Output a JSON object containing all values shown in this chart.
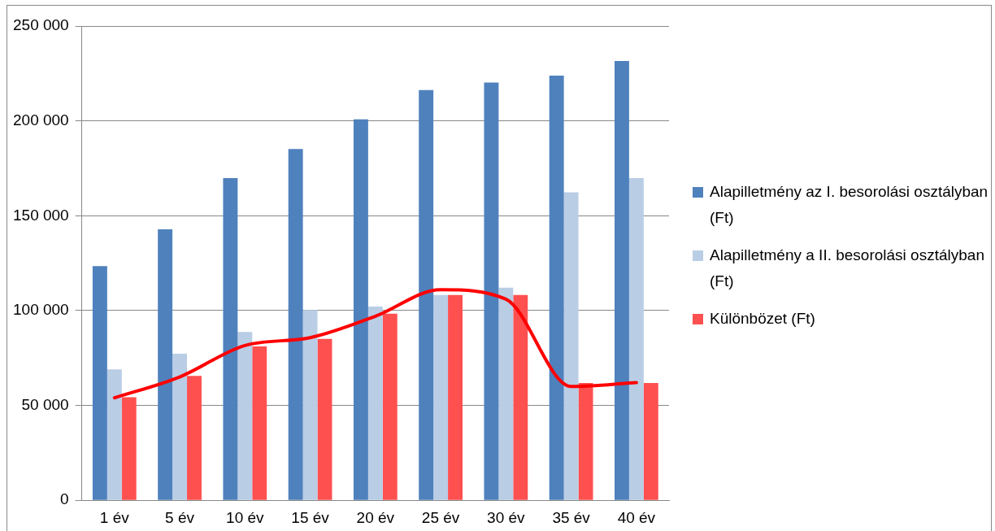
{
  "chart_data": {
    "type": "bar",
    "categories": [
      "1 év",
      "5 év",
      "10 év",
      "15 év",
      "20 év",
      "25 év",
      "30 év",
      "35 év",
      "40 év"
    ],
    "series": [
      {
        "name": "Alapilletmény az I. besorolási osztályban (Ft)",
        "color": "#4f81bd",
        "values": [
          123400,
          142800,
          169800,
          185200,
          200800,
          216200,
          220200,
          223900,
          231600
        ]
      },
      {
        "name": "Alapilletmény a II. besorolási osztályban (Ft)",
        "color": "#b9cde5",
        "values": [
          69000,
          77200,
          88700,
          100300,
          102100,
          108200,
          112100,
          162300,
          169800
        ]
      },
      {
        "name": "Különbözet (Ft)",
        "color": "#ff5050",
        "values": [
          54300,
          65600,
          81100,
          85100,
          98400,
          108200,
          108200,
          61800,
          61800
        ]
      },
      {
        "type": "line",
        "color": "#ff0000",
        "values": [
          54000,
          65000,
          81600,
          85700,
          97000,
          111000,
          106000,
          60000,
          62000
        ]
      }
    ],
    "ylim": [
      0,
      250000
    ],
    "yticks": [
      {
        "value": 0,
        "label": "0"
      },
      {
        "value": 50000,
        "label": "50 000"
      },
      {
        "value": 100000,
        "label": "100 000"
      },
      {
        "value": 150000,
        "label": "150 000"
      },
      {
        "value": 200000,
        "label": "200 000"
      },
      {
        "value": 250000,
        "label": "250 000"
      }
    ],
    "grid": "y",
    "legend": "right",
    "marker": "none"
  }
}
